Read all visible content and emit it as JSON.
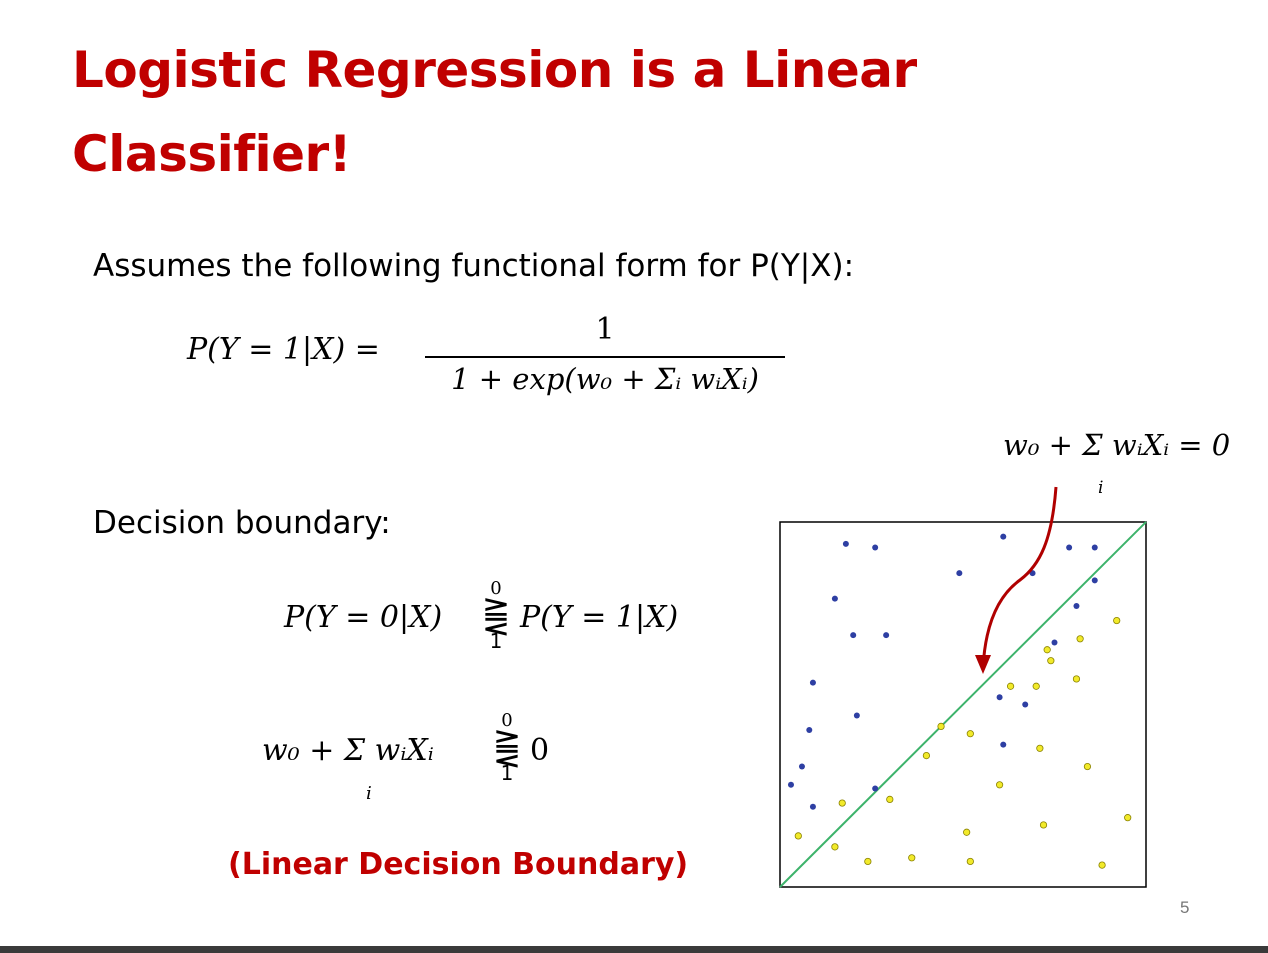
{
  "slide": {
    "title_line1": "Logistic Regression is a Linear",
    "title_line2": "Classifier!",
    "assumes_text": "Assumes the following functional form for P(Y|X):",
    "formula_lhs": "P(Y = 1|X) =",
    "formula_numerator": "1",
    "formula_denominator": "1 + exp(w₀ + Σᵢ wᵢXᵢ)",
    "decision_boundary_label": "Decision boundary:",
    "ineq1_lhs": "P(Y = 0|X)",
    "ineq1_rhs": "P(Y = 1|X)",
    "ineq_top": "0",
    "ineq_symbol": "⪌",
    "ineq_bottom": "1",
    "ineq2_lhs": "w₀ + Σ wᵢXᵢ",
    "ineq2_sum_index": "i",
    "ineq2_rhs": "0",
    "linear_boundary_note": "(Linear Decision Boundary)",
    "boundary_equation": "w₀ + Σ wᵢXᵢ = 0",
    "boundary_equation_index": "i",
    "page_number": "5"
  },
  "colors": {
    "title": "#c00000",
    "blue_points": "#2e3fa3",
    "yellow_points": "#f2ea2a",
    "boundary_line": "#3db36b",
    "arrow": "#b00000"
  },
  "chart_data": {
    "type": "scatter",
    "xlim": [
      0,
      1
    ],
    "ylim": [
      0,
      1
    ],
    "boundary_line": [
      [
        0,
        0
      ],
      [
        1,
        1
      ]
    ],
    "series": [
      {
        "class": "blue",
        "points": [
          [
            0.18,
            0.94
          ],
          [
            0.26,
            0.93
          ],
          [
            0.61,
            0.96
          ],
          [
            0.49,
            0.86
          ],
          [
            0.69,
            0.86
          ],
          [
            0.79,
            0.93
          ],
          [
            0.86,
            0.93
          ],
          [
            0.86,
            0.84
          ],
          [
            0.15,
            0.79
          ],
          [
            0.2,
            0.69
          ],
          [
            0.29,
            0.69
          ],
          [
            0.81,
            0.77
          ],
          [
            0.75,
            0.67
          ],
          [
            0.09,
            0.56
          ],
          [
            0.21,
            0.47
          ],
          [
            0.6,
            0.52
          ],
          [
            0.67,
            0.5
          ],
          [
            0.08,
            0.43
          ],
          [
            0.61,
            0.39
          ],
          [
            0.06,
            0.33
          ],
          [
            0.03,
            0.28
          ],
          [
            0.26,
            0.27
          ],
          [
            0.09,
            0.22
          ]
        ]
      },
      {
        "class": "yellow",
        "points": [
          [
            0.92,
            0.73
          ],
          [
            0.82,
            0.68
          ],
          [
            0.73,
            0.65
          ],
          [
            0.74,
            0.62
          ],
          [
            0.63,
            0.55
          ],
          [
            0.7,
            0.55
          ],
          [
            0.81,
            0.57
          ],
          [
            0.44,
            0.44
          ],
          [
            0.52,
            0.42
          ],
          [
            0.4,
            0.36
          ],
          [
            0.71,
            0.38
          ],
          [
            0.84,
            0.33
          ],
          [
            0.6,
            0.28
          ],
          [
            0.3,
            0.24
          ],
          [
            0.17,
            0.23
          ],
          [
            0.95,
            0.19
          ],
          [
            0.05,
            0.14
          ],
          [
            0.51,
            0.15
          ],
          [
            0.72,
            0.17
          ],
          [
            0.15,
            0.11
          ],
          [
            0.24,
            0.07
          ],
          [
            0.36,
            0.08
          ],
          [
            0.52,
            0.07
          ],
          [
            0.88,
            0.06
          ]
        ]
      }
    ]
  }
}
